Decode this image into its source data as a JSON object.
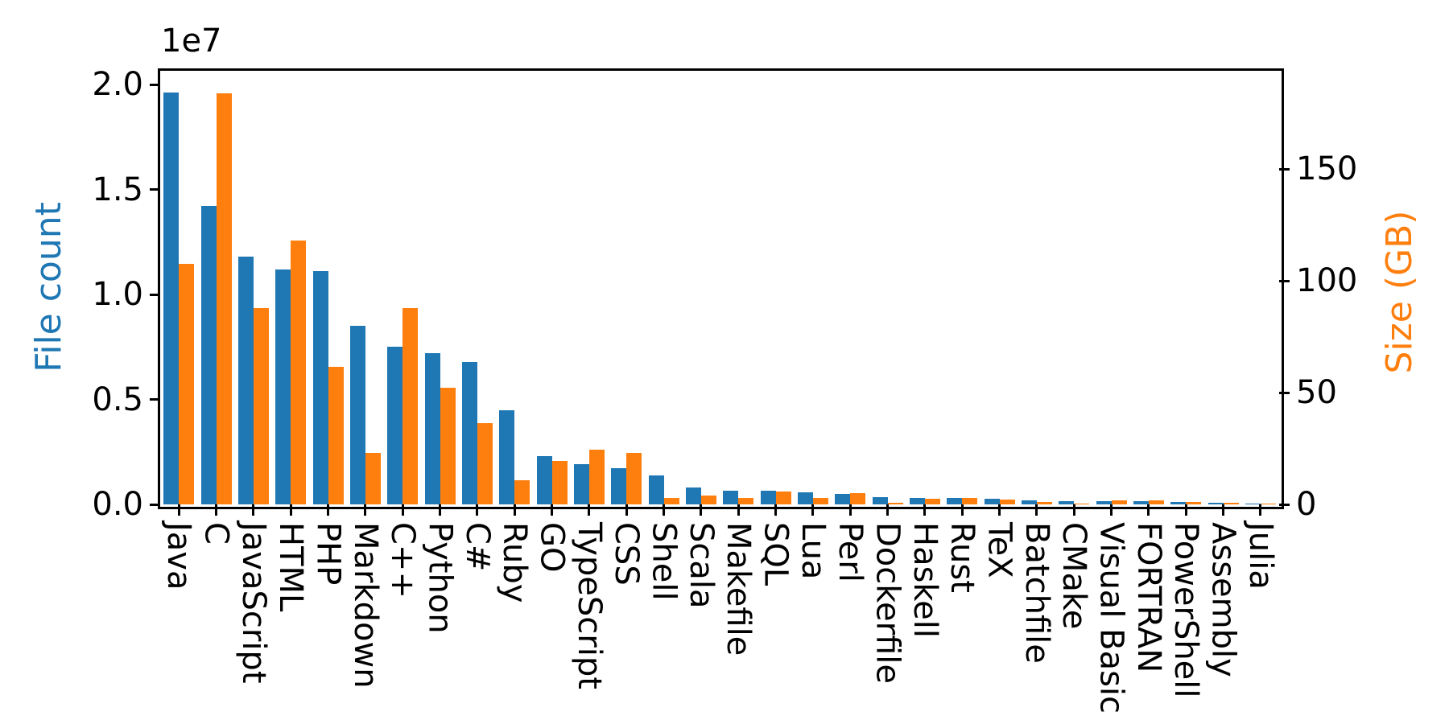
{
  "figure": {
    "background": "#ffffff",
    "title": ""
  },
  "chart_data": {
    "type": "bar",
    "grid": false,
    "legend": null,
    "categories": [
      "Java",
      "C",
      "JavaScript",
      "HTML",
      "PHP",
      "Markdown",
      "C++",
      "Python",
      "C#",
      "Ruby",
      "GO",
      "TypeScript",
      "CSS",
      "Shell",
      "Scala",
      "Makefile",
      "SQL",
      "Lua",
      "Perl",
      "Dockerfile",
      "Haskell",
      "Rust",
      "TeX",
      "Batchfile",
      "CMake",
      "Visual Basic",
      "FORTRAN",
      "PowerShell",
      "Assembly",
      "Julia"
    ],
    "series": [
      {
        "name": "File count",
        "axis": "left",
        "color": "#1f77b4",
        "values": [
          19600000,
          14200000,
          11800000,
          11200000,
          11100000,
          8500000,
          7500000,
          7200000,
          6800000,
          4500000,
          2300000,
          1920000,
          1730000,
          1390000,
          810000,
          660000,
          650000,
          570000,
          500000,
          350000,
          320000,
          310000,
          250000,
          210000,
          160000,
          160000,
          150000,
          130000,
          70000,
          40000
        ]
      },
      {
        "name": "Size (GB)",
        "axis": "right",
        "color": "#ff7f0e",
        "values": [
          107.7,
          183.8,
          87.8,
          118.1,
          61.4,
          23.1,
          87.7,
          52.0,
          36.4,
          10.9,
          19.3,
          24.6,
          23.0,
          3.0,
          3.9,
          2.9,
          5.7,
          2.8,
          5.0,
          0.6,
          2.4,
          2.7,
          2.2,
          0.9,
          0.5,
          1.9,
          1.9,
          1.1,
          0.8,
          0.3
        ]
      }
    ],
    "left_axis": {
      "label": "File count",
      "color": "#1f77b4",
      "offset_text": "1e7",
      "tick_labels": [
        "0.0",
        "0.5",
        "1.0",
        "1.5",
        "2.0"
      ],
      "tick_values": [
        0,
        5000000,
        10000000,
        15000000,
        20000000
      ],
      "range": [
        0,
        20650000
      ]
    },
    "right_axis": {
      "label": "Size (GB)",
      "color": "#ff7f0e",
      "tick_labels": [
        "0",
        "50",
        "100",
        "150"
      ],
      "tick_values": [
        0,
        50,
        100,
        150
      ],
      "range": [
        0,
        194
      ]
    },
    "x_axis": {
      "label": "",
      "tick_label_rotation_deg": 90
    }
  }
}
